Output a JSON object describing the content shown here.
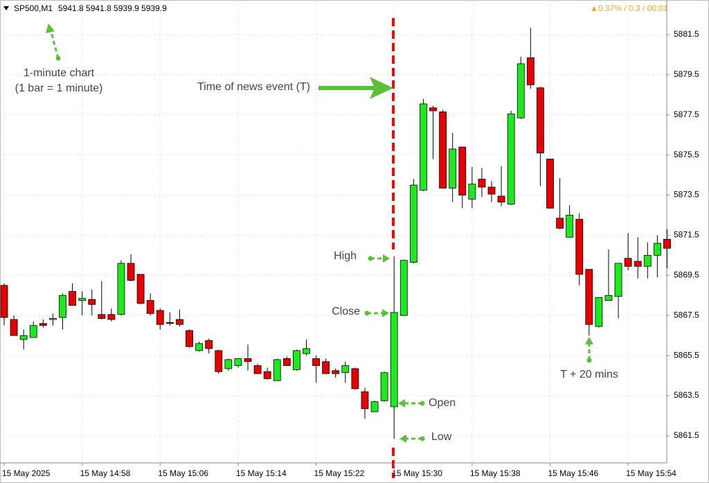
{
  "chart_data": {
    "type": "candlestick",
    "symbol": "SP500,M1",
    "quote": "5941.8 5941.8 5939.9 5939.9",
    "status": "▲0.37% / 0.3 / 00:01",
    "annotations": [
      "1-minute chart",
      "(1 bar = 1 minute)",
      "Time of news event (T)",
      "High",
      "Close",
      "Open",
      "Low",
      "T + 20 mins"
    ],
    "up_color": "#1ee81e",
    "down_color": "#e60000",
    "grid": true,
    "categories": [
      "15 May 2025",
      null,
      null,
      null,
      null,
      null,
      null,
      null,
      "15 May 14:58",
      null,
      null,
      null,
      null,
      null,
      null,
      null,
      "15 May 15:06",
      null,
      null,
      null,
      null,
      null,
      null,
      null,
      "15 May 15:14",
      null,
      null,
      null,
      null,
      null,
      null,
      null,
      "15 May 15:22",
      null,
      null,
      null,
      null,
      null,
      null,
      null,
      "15 May 15:30",
      null,
      null,
      null,
      null,
      null,
      null,
      null,
      "15 May 15:38",
      null,
      null,
      null,
      null,
      null,
      null,
      null,
      "15 May 15:46",
      null,
      null,
      null,
      null,
      null,
      null,
      null,
      "15 May 15:54",
      null,
      null,
      null,
      null
    ],
    "open": [
      5869.0,
      5867.3,
      5866.3,
      5866.4,
      5867.1,
      5867.3,
      5867.4,
      5868.7,
      5868.25,
      5868.3,
      5867.55,
      5867.55,
      5867.55,
      5870.1,
      5869.55,
      5868.25,
      5867.75,
      5867.15,
      5867.3,
      5866.75,
      5865.75,
      5866.25,
      5865.75,
      5864.85,
      5865.0,
      5865.35,
      5865.0,
      5864.7,
      5864.25,
      5865.35,
      5864.8,
      5865.6,
      5865.35,
      5865.2,
      5864.75,
      5864.65,
      5864.85,
      5863.7,
      5862.7,
      5863.25,
      5862.95,
      5867.5,
      5870.15,
      5873.75,
      5877.85,
      5877.65,
      5873.85,
      5875.9,
      5873.3,
      5874.3,
      5873.9,
      5873.45,
      5873.05,
      5877.35,
      5880.35,
      5878.85,
      5875.3,
      5872.35,
      5871.4,
      5872.3,
      5869.8,
      5866.95,
      5868.25,
      5868.45,
      5870.35,
      5870.2,
      5869.95,
      5870.5,
      5871.3
    ],
    "high": [
      5869.1,
      5867.5,
      5866.8,
      5867.2,
      5867.3,
      5867.6,
      5868.6,
      5869.1,
      5868.7,
      5868.8,
      5869.2,
      5867.85,
      5870.25,
      5870.55,
      5869.55,
      5868.6,
      5867.85,
      5867.65,
      5867.8,
      5866.8,
      5866.2,
      5866.35,
      5865.8,
      5865.35,
      5865.35,
      5866.05,
      5865.1,
      5864.9,
      5865.35,
      5865.45,
      5865.8,
      5866.3,
      5865.5,
      5865.35,
      5864.85,
      5865.2,
      5864.9,
      5863.9,
      5863.25,
      5864.7,
      5870.45,
      5870.25,
      5874.3,
      5878.3,
      5877.95,
      5877.75,
      5876.6,
      5875.9,
      5874.9,
      5874.85,
      5874.2,
      5874.95,
      5877.7,
      5880.4,
      5881.85,
      5878.9,
      5875.3,
      5874.35,
      5873.0,
      5872.6,
      5869.8,
      5868.4,
      5870.8,
      5870.1,
      5871.6,
      5871.4,
      5871.15,
      5871.5,
      5871.8
    ],
    "low": [
      5867.0,
      5866.5,
      5865.8,
      5866.4,
      5866.9,
      5867.0,
      5866.8,
      5868.0,
      5867.5,
      5867.5,
      5867.3,
      5867.2,
      5867.5,
      5869.2,
      5868.05,
      5867.5,
      5866.8,
      5867.0,
      5866.95,
      5865.9,
      5865.7,
      5865.6,
      5864.6,
      5864.75,
      5864.9,
      5864.75,
      5864.6,
      5864.3,
      5864.25,
      5864.98,
      5864.75,
      5865.5,
      5864.15,
      5864.6,
      5864.4,
      5864.15,
      5863.8,
      5862.35,
      5862.7,
      5863.2,
      5861.35,
      5867.5,
      5870.1,
      5873.7,
      5875.3,
      5873.85,
      5873.15,
      5872.85,
      5872.85,
      5873.4,
      5873.15,
      5872.95,
      5873.0,
      5877.3,
      5878.8,
      5873.95,
      5872.85,
      5871.8,
      5871.4,
      5869.0,
      5866.5,
      5866.9,
      5868.25,
      5867.35,
      5869.75,
      5869.35,
      5869.35,
      5869.4,
      5869.85
    ],
    "close": [
      5867.4,
      5866.5,
      5866.5,
      5867.0,
      5867.0,
      5867.35,
      5868.5,
      5868.0,
      5868.35,
      5868.05,
      5867.35,
      5867.3,
      5870.1,
      5869.25,
      5868.1,
      5867.6,
      5867.05,
      5867.1,
      5867.05,
      5865.95,
      5866.1,
      5865.85,
      5864.7,
      5865.3,
      5865.35,
      5865.2,
      5864.6,
      5864.35,
      5865.3,
      5865.0,
      5865.75,
      5865.85,
      5865.0,
      5864.6,
      5864.6,
      5865.0,
      5863.85,
      5862.85,
      5863.2,
      5864.65,
      5867.65,
      5870.25,
      5874.0,
      5878.05,
      5877.7,
      5873.85,
      5875.8,
      5873.5,
      5874.05,
      5873.9,
      5873.55,
      5873.15,
      5877.55,
      5880.05,
      5879.0,
      5875.6,
      5872.85,
      5871.85,
      5872.5,
      5869.55,
      5867.05,
      5868.4,
      5868.5,
      5870.1,
      5869.95,
      5869.95,
      5870.5,
      5871.1,
      5870.85
    ],
    "ylim": [
      5860.15,
      5883.02
    ],
    "yticks": [
      5861.5,
      5863.5,
      5865.5,
      5867.5,
      5869.5,
      5871.5,
      5873.5,
      5875.5,
      5877.5,
      5879.5,
      5881.5
    ]
  }
}
